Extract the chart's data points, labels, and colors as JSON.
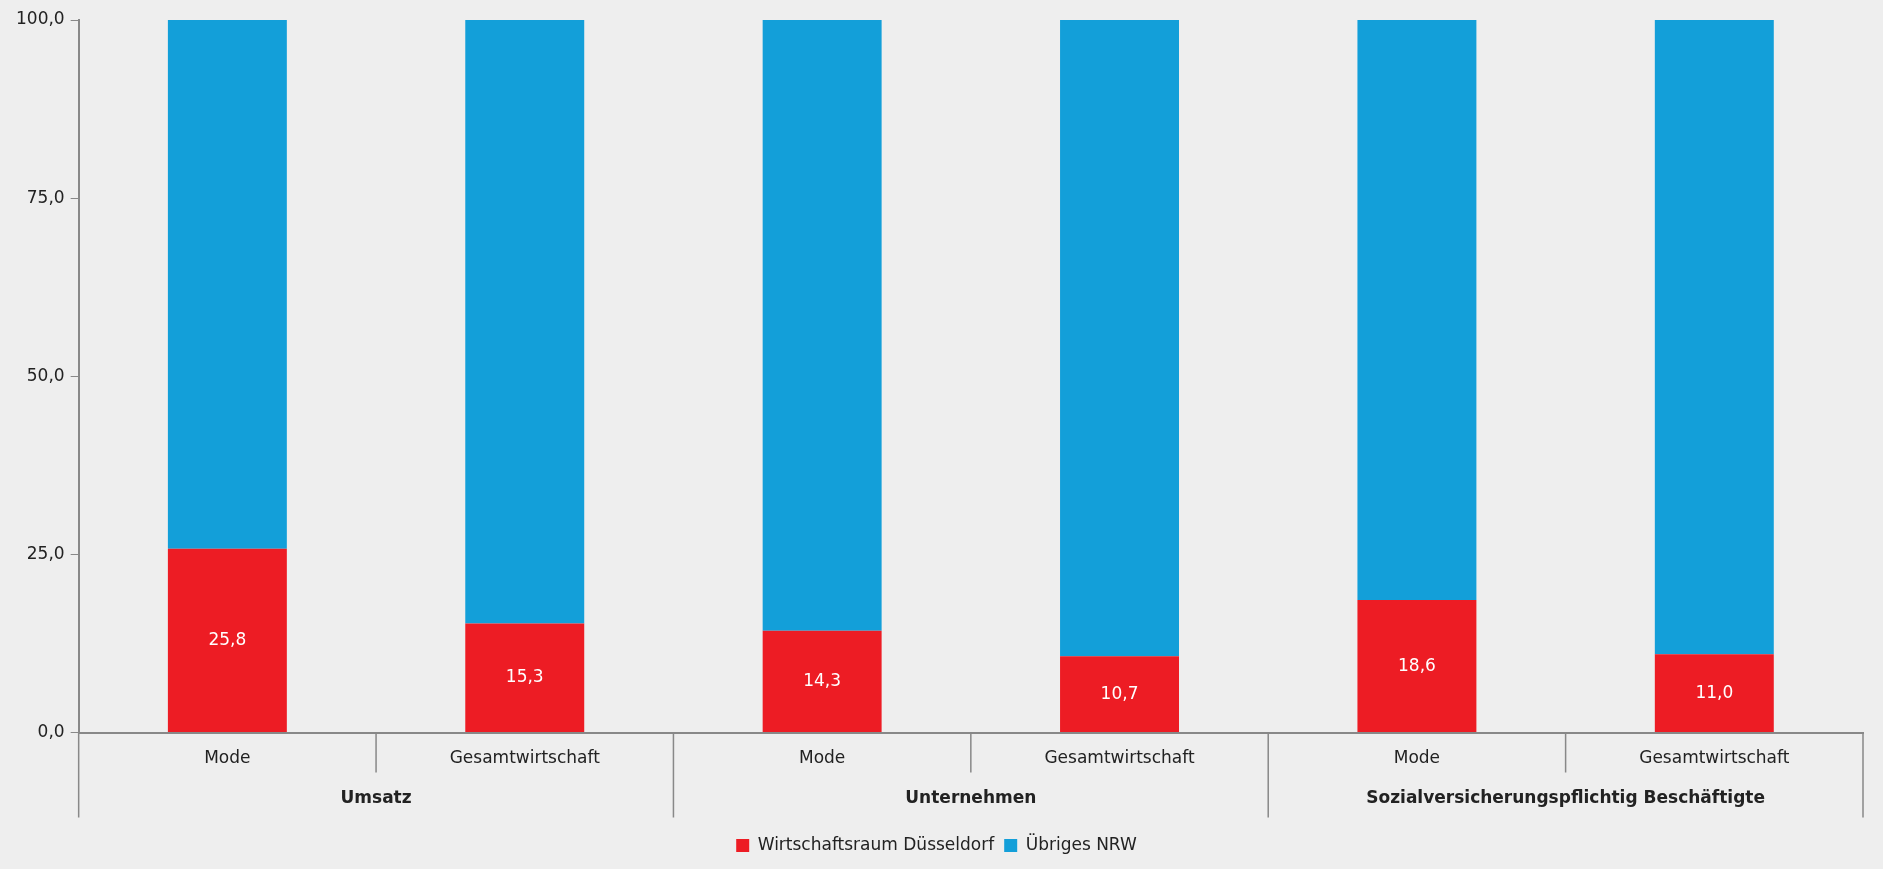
{
  "chart_data": {
    "type": "bar",
    "stacked": true,
    "categories": [
      "Mode",
      "Gesamtwirtschaft",
      "Mode",
      "Gesamtwirtschaft",
      "Mode",
      "Gesamtwirtschaft"
    ],
    "series": [
      {
        "name": "Wirtschaftsraum Düsseldorf",
        "color": "#ed1c24",
        "values": [
          25.8,
          15.3,
          14.3,
          10.7,
          18.6,
          11.0
        ],
        "value_labels": [
          "25,8",
          "15,3",
          "14,3",
          "10,7",
          "18,6",
          "11,0"
        ]
      },
      {
        "name": "Übriges NRW",
        "color": "#139fd9",
        "values": [
          74.2,
          84.7,
          85.7,
          89.3,
          81.4,
          89.0
        ]
      }
    ],
    "annotations": [
      "Umsatz",
      "Unternehmen",
      "Sozialversicherungspflichtig Beschäftigte"
    ],
    "ylim": [
      0,
      100
    ],
    "yticks": [
      {
        "value": 0,
        "label": "0,0"
      },
      {
        "value": 25,
        "label": "25,0"
      },
      {
        "value": 50,
        "label": "50,0"
      },
      {
        "value": 75,
        "label": "75,0"
      },
      {
        "value": 100,
        "label": "100,0"
      }
    ],
    "grid": false,
    "legend": "bottom"
  }
}
